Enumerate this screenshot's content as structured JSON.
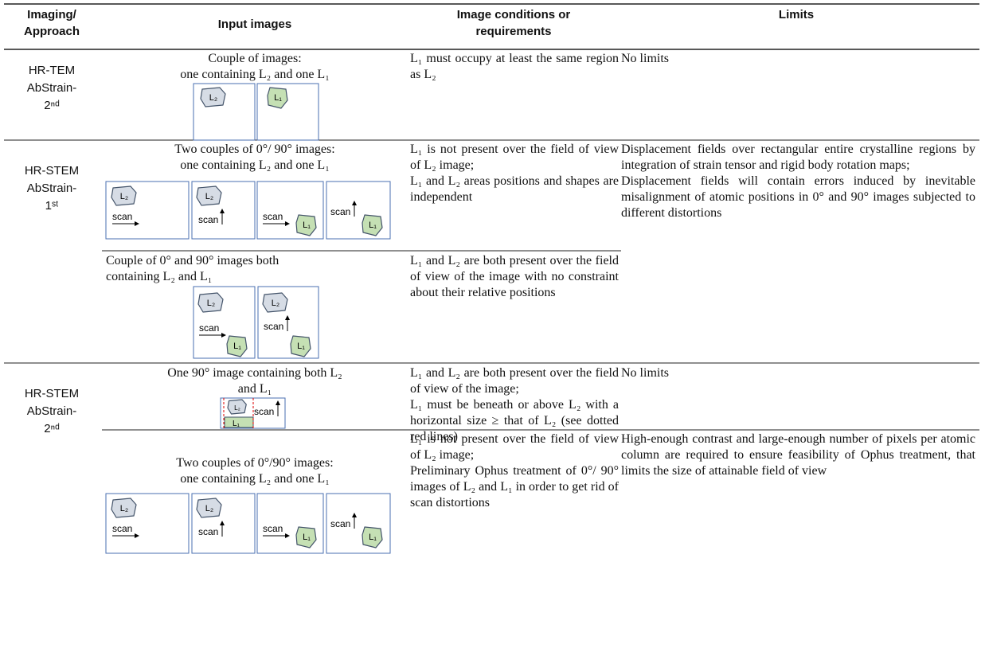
{
  "table": {
    "headers": [
      "Imaging/ Approach",
      "Input images",
      "Image conditions or requirements",
      "Limits"
    ],
    "diagram_labels": {
      "l2": "L₂",
      "l1": "L₁",
      "scan": "scan"
    },
    "rows": [
      {
        "approach": [
          "HR-TEM",
          "AbStrain-",
          "2ⁿᵈ"
        ],
        "cases": [
          {
            "input": [
              "Couple of images:",
              "one containing L₂ and one L₁"
            ],
            "conditions": [
              "L₁ must occupy at least the same region as L₂"
            ]
          }
        ],
        "limits": [
          "No limits"
        ]
      },
      {
        "approach": [
          "HR-STEM",
          "AbStrain-",
          "1ˢᵗ"
        ],
        "cases": [
          {
            "input": [
              "Two couples of 0°/ 90° images:",
              "one containing L₂ and one L₁"
            ],
            "conditions": [
              "L₁ is not present over the field of view of L₂ image;",
              "L₁ and L₂ areas positions and shapes are independent"
            ]
          },
          {
            "input": [
              "Couple of 0° and 90° images both containing L₂ and L₁"
            ],
            "conditions": [
              "L₁ and L₂ are both present over the field of view of the image with no constraint about their relative positions"
            ]
          }
        ],
        "limits": [
          "Displacement fields over rectangular entire crystalline regions by integration of strain tensor and rigid body rotation maps;",
          "Displacement fields will contain errors induced by inevitable misalignment of atomic positions in 0° and 90° images subjected to different distortions"
        ]
      },
      {
        "approach": [
          "HR-STEM",
          "AbStrain-",
          "2ⁿᵈ"
        ],
        "cases": [
          {
            "input": [
              "One 90° image containing both L₂",
              "and L₁"
            ],
            "conditions": [
              "L₁ and L₂ are both present over the field of view of the image;",
              "L₁ must be beneath or above L₂ with a horizontal size ≥ that of L₂ (see dotted red lines)"
            ],
            "limits": [
              "No limits"
            ]
          },
          {
            "input": [
              "Two couples of 0°/90° images:",
              "one containing L₂ and one L₁"
            ],
            "conditions": [
              "L₁ is not present over the field of view of L₂ image;",
              "Preliminary Ophus treatment of 0°/ 90° images of L₂ and L₁ in order to get rid of scan distortions"
            ],
            "limits": [
              "High-enough contrast and large-enough number of pixels per atomic column are required to ensure feasibility of Ophus treatment, that limits the size of attainable field of view"
            ]
          }
        ]
      }
    ]
  }
}
